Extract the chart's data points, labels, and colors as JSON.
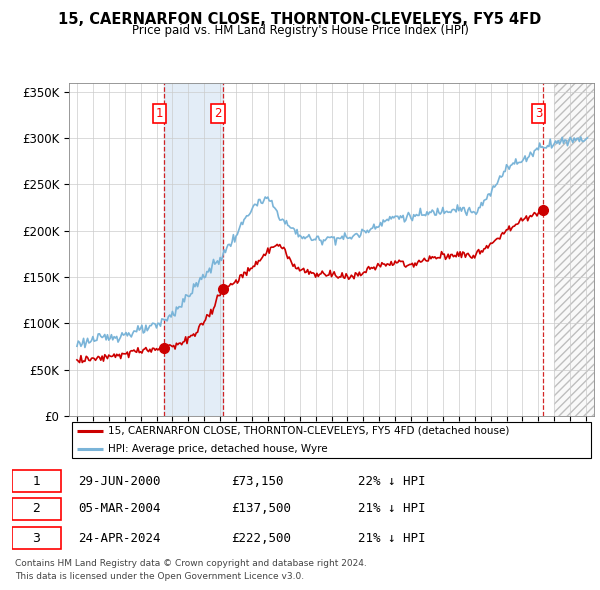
{
  "title": "15, CAERNARFON CLOSE, THORNTON-CLEVELEYS, FY5 4FD",
  "subtitle": "Price paid vs. HM Land Registry's House Price Index (HPI)",
  "legend_property": "15, CAERNARFON CLOSE, THORNTON-CLEVELEYS, FY5 4FD (detached house)",
  "legend_hpi": "HPI: Average price, detached house, Wyre",
  "footer1": "Contains HM Land Registry data © Crown copyright and database right 2024.",
  "footer2": "This data is licensed under the Open Government Licence v3.0.",
  "sales": [
    {
      "num": 1,
      "date_label": "29-JUN-2000",
      "date_x": 2000.49,
      "price": 73150,
      "pct": "22% ↓ HPI"
    },
    {
      "num": 2,
      "date_label": "05-MAR-2004",
      "date_x": 2004.17,
      "price": 137500,
      "pct": "21% ↓ HPI"
    },
    {
      "num": 3,
      "date_label": "24-APR-2024",
      "date_x": 2024.32,
      "price": 222500,
      "pct": "21% ↓ HPI"
    }
  ],
  "hpi_color": "#7ab4d8",
  "sale_color": "#cc0000",
  "vline_color": "#cc0000",
  "highlight_color": "#dce9f5",
  "ylim": [
    0,
    360000
  ],
  "xlim": [
    1994.5,
    2027.5
  ],
  "ytick_vals": [
    0,
    50000,
    100000,
    150000,
    200000,
    250000,
    300000,
    350000
  ],
  "ytick_labels": [
    "£0",
    "£50K",
    "£100K",
    "£150K",
    "£200K",
    "£250K",
    "£300K",
    "£350K"
  ],
  "hpi_anchors_x": [
    1995.0,
    1996.0,
    1997.0,
    1998.0,
    1999.0,
    2000.0,
    2001.0,
    2002.0,
    2003.0,
    2004.0,
    2005.0,
    2006.0,
    2007.0,
    2008.0,
    2009.0,
    2010.0,
    2011.0,
    2012.0,
    2013.0,
    2014.0,
    2015.0,
    2016.0,
    2017.0,
    2018.0,
    2019.0,
    2020.0,
    2021.0,
    2022.0,
    2023.0,
    2024.0,
    2025.0,
    2026.0,
    2027.0
  ],
  "hpi_anchors_y": [
    78000,
    82000,
    85000,
    88000,
    92000,
    97000,
    110000,
    130000,
    152000,
    170000,
    195000,
    225000,
    235000,
    210000,
    195000,
    190000,
    193000,
    192000,
    198000,
    208000,
    215000,
    215000,
    218000,
    222000,
    225000,
    218000,
    240000,
    270000,
    275000,
    290000,
    295000,
    298000,
    300000
  ],
  "sale_anchors_x": [
    1995.0,
    1996.5,
    1998.0,
    1999.0,
    2000.49,
    2001.5,
    2002.5,
    2003.5,
    2004.17,
    2005.0,
    2006.0,
    2007.0,
    2007.5,
    2008.0,
    2008.5,
    2009.0,
    2009.5,
    2010.0,
    2011.0,
    2012.0,
    2013.0,
    2014.0,
    2015.0,
    2016.0,
    2017.0,
    2018.0,
    2019.0,
    2020.0,
    2021.0,
    2022.0,
    2023.0,
    2024.0,
    2024.32
  ],
  "sale_anchors_y": [
    60000,
    63000,
    67000,
    70000,
    73150,
    78000,
    88000,
    115000,
    137500,
    145000,
    160000,
    178000,
    185000,
    180000,
    165000,
    158000,
    155000,
    153000,
    153000,
    150000,
    155000,
    162000,
    165000,
    164000,
    168000,
    172000,
    175000,
    173000,
    185000,
    200000,
    212000,
    220000,
    222500
  ],
  "noise_seed": 123,
  "noise_hpi": 2500,
  "noise_sale": 2000,
  "hatch_start": 2025.0
}
